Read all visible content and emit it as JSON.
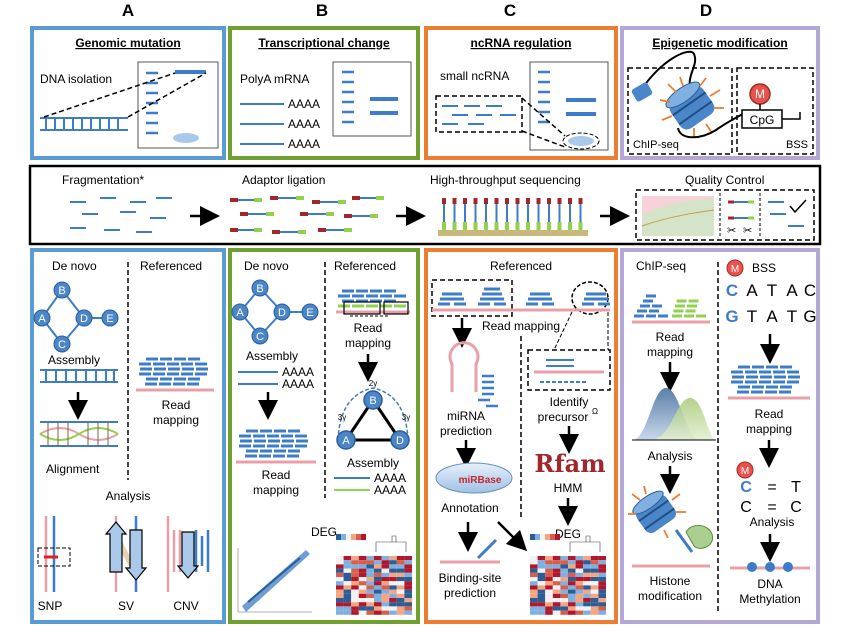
{
  "columns": [
    "A",
    "B",
    "C",
    "D"
  ],
  "colors": {
    "blue_panel": "#5b9bd5",
    "green_panel": "#70a030",
    "orange_panel": "#ed7d31",
    "purple_panel": "#b4a7d6",
    "read_blue": "#3d7cc9",
    "ref_pink": "#e8a0a8",
    "green_accent": "#92d050",
    "red_adaptor": "#a0282d"
  },
  "top": {
    "a": {
      "title": "Genomic mutation",
      "label": "DNA isolation"
    },
    "b": {
      "title": "Transcriptional change",
      "label": "PolyA mRNA",
      "polya": [
        "AAAA",
        "AAAA",
        "AAAA"
      ]
    },
    "c": {
      "title": "ncRNA regulation",
      "label": "small ncRNA"
    },
    "d": {
      "title": "Epigenetic modification",
      "m": "M",
      "cpg": "CpG",
      "chip": "ChIP-seq",
      "bss": "BSS"
    }
  },
  "pipeline": {
    "fragmentation": "Fragmentation*",
    "adaptor": "Adaptor ligation",
    "sequencing": "High-throughput sequencing",
    "qc": "Quality Control"
  },
  "bottom": {
    "a": {
      "denovo": "De novo",
      "referenced": "Referenced",
      "nodes": [
        "A",
        "B",
        "C",
        "D",
        "E"
      ],
      "assembly": "Assembly",
      "alignment": "Alignment",
      "read_mapping": [
        "Read",
        "mapping"
      ],
      "analysis": "Analysis",
      "snp": "SNP",
      "sv": "SV",
      "cnv": "CNV"
    },
    "b": {
      "denovo": "De novo",
      "referenced": "Referenced",
      "nodes": [
        "A",
        "B",
        "C",
        "D",
        "E"
      ],
      "assembly": "Assembly",
      "polya": [
        "AAAA",
        "AAAA"
      ],
      "read_mapping_left": [
        "Read",
        "mapping"
      ],
      "read_mapping_right": [
        "Read",
        "mapping"
      ],
      "tri_nodes": [
        "A",
        "B",
        "D"
      ],
      "tri_labels": [
        "2γ",
        "3γ",
        "3γ"
      ],
      "assembly2": "Assembly",
      "polya2": [
        "AAAA",
        "AAAA"
      ],
      "deg": "DEG"
    },
    "c": {
      "referenced": "Referenced",
      "read_mapping": "Read mapping",
      "mirna": [
        "miRNA",
        "prediction"
      ],
      "precursor": [
        "Identify",
        "precursor"
      ],
      "precursor_sup": "Ω",
      "mirbase": "miRBase",
      "rfam": "Rfam",
      "annotation": "Annotation",
      "hmm": "HMM",
      "deg": "DEG",
      "binding": [
        "Binding-site",
        "prediction"
      ]
    },
    "d": {
      "chipseq": "ChIP-seq",
      "bss": "BSS",
      "m": "M",
      "seq1": [
        "C",
        "A",
        "T",
        "A",
        "C"
      ],
      "seq2": [
        "G",
        "T",
        "A",
        "T",
        "G"
      ],
      "read_mapping_left": [
        "Read",
        "mapping"
      ],
      "read_mapping_right": [
        "Read",
        "mapping"
      ],
      "analysis_left": "Analysis",
      "conv1": [
        "C",
        "=",
        "T"
      ],
      "conv2": [
        "C",
        "=",
        "C"
      ],
      "analysis_right": "Analysis",
      "histone": [
        "Histone",
        "modification"
      ],
      "dna_meth": [
        "DNA",
        "Methylation"
      ]
    }
  }
}
